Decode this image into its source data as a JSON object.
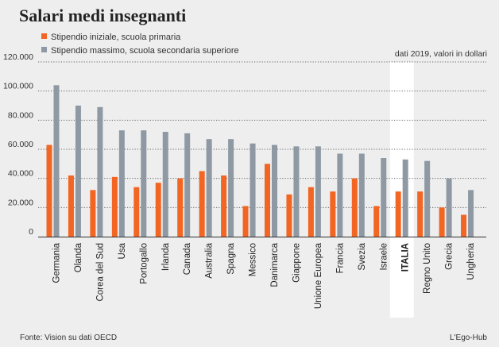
{
  "chart_data": {
    "type": "bar",
    "title": "Salari medi insegnanti",
    "note": "dati 2019, valori in dollari",
    "source": "Fonte: Vision su dati OECD",
    "credit": "L'Ego-Hub",
    "ylim": [
      0,
      120000
    ],
    "yticks": [
      "0",
      "20.000",
      "40.000",
      "60.000",
      "80.000",
      "100.000",
      "120.000"
    ],
    "ytick_values": [
      0,
      20000,
      40000,
      60000,
      80000,
      100000,
      120000
    ],
    "highlight": "ITALIA",
    "categories": [
      "Germania",
      "Olanda",
      "Corea del Sud",
      "Usa",
      "Portogallo",
      "Irlanda",
      "Canada",
      "Australia",
      "Spagna",
      "Messico",
      "Danimarca",
      "Giappone",
      "Unione Europea",
      "Francia",
      "Svezia",
      "Israele",
      "ITALIA",
      "Regno Unito",
      "Grecia",
      "Ungheria"
    ],
    "series": [
      {
        "name": "Stipendio iniziale, scuola primaria",
        "color": "#f26522",
        "values": [
          63000,
          42000,
          32000,
          41000,
          34000,
          37000,
          40000,
          45000,
          42000,
          21000,
          50000,
          29000,
          34000,
          31000,
          40000,
          21000,
          31000,
          31000,
          20000,
          15000
        ]
      },
      {
        "name": "Stipendio massimo, scuola secondaria superiore",
        "color": "#8e99a4",
        "values": [
          104000,
          90000,
          89000,
          73000,
          73000,
          72000,
          71000,
          67000,
          67000,
          64000,
          63000,
          62000,
          62000,
          57000,
          57000,
          54000,
          53000,
          52000,
          40000,
          32000
        ]
      }
    ]
  }
}
